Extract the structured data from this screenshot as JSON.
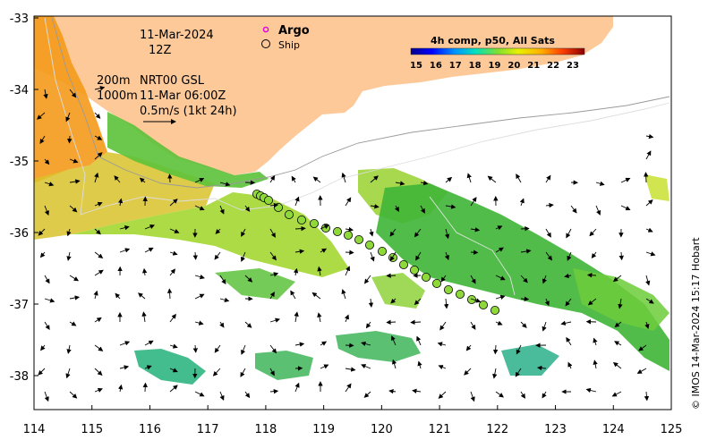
{
  "header": {
    "date": "11-Mar-2024",
    "time": "12Z",
    "depth_line_1": "200m",
    "depth_line_2": "1000m",
    "product": "NRT00 GSL",
    "product_time": "11-Mar 06:00Z",
    "arrow_scale": "0.5m/s (1kt 24h)"
  },
  "legend": {
    "argo_label": "Argo",
    "ship_label": "Ship"
  },
  "colorbar": {
    "title": "4h comp, p50, All Sats",
    "ticks": [
      "15",
      "16",
      "17",
      "18",
      "19",
      "20",
      "21",
      "22",
      "23"
    ]
  },
  "axes": {
    "x_ticks": [
      "114",
      "115",
      "116",
      "117",
      "118",
      "119",
      "120",
      "121",
      "122",
      "123",
      "124",
      "125"
    ],
    "y_ticks": [
      "-33",
      "-34",
      "-35",
      "-36",
      "-37",
      "-38"
    ]
  },
  "credit": "© IMOS 14-Mar-2024 15:17 Hobart",
  "colors": {
    "land": "#fdc999",
    "warm": "#f59a1b",
    "mid": "#9bd43a",
    "cool": "#3fb536",
    "cold": "#22b07a",
    "ship_dot": "#8fd83a"
  }
}
